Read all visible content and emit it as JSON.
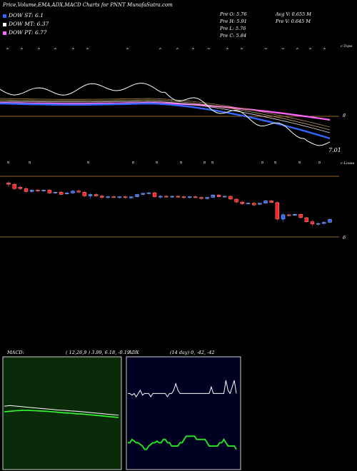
{
  "header": {
    "title": "Price,Volume,EMA,ADX,MACD Charts for PNNT MunafaSutra.com"
  },
  "legend": [
    {
      "label": "DOW ST: 6.1",
      "color": "#3366ff"
    },
    {
      "label": "DOW MT: 6.37",
      "color": "#ffffff"
    },
    {
      "label": "DOW PT: 6.77",
      "color": "#ff66ff"
    }
  ],
  "stats": {
    "prev_open": "Pre   O: 5.76",
    "prev_high": "Pre   H: 5.91",
    "prev_low": "Pre   L: 5.76",
    "prev_close": "Pre   C: 5.84",
    "avg_volume": "Avg V: 0.655 M",
    "prev_volume": "Pre   V: 0.645 M"
  },
  "labels": {
    "price_last": "7.01",
    "upper_right": "c-Tope",
    "mid_right": "c-Loasa",
    "axis_8": "8",
    "axis_6": "6"
  },
  "macd": {
    "title": "MACD:",
    "params": "( 12,26,9 ) 3.99, 6.18, -0.19"
  },
  "adx": {
    "title": "ADX",
    "params": "(14  day) 0, -42, -42"
  },
  "colors": {
    "background": "#000000",
    "up": "#3366ff",
    "down": "#ff2222",
    "ema_short": "#3366ff",
    "ema_long": "#ff66ff",
    "price_line": "#ffffff",
    "hline": "#cc8833",
    "macd_bg": "#0a2a0a",
    "adx_bg": "#000022"
  },
  "chart_data": [
    {
      "type": "candlestick",
      "title": "",
      "ylim": [
        5.4,
        8.6
      ],
      "candles": [
        {
          "o": 8.2,
          "h": 8.25,
          "l": 8.05,
          "c": 8.15
        },
        {
          "o": 8.15,
          "h": 8.2,
          "l": 7.95,
          "c": 8.0
        },
        {
          "o": 8.05,
          "h": 8.1,
          "l": 7.95,
          "c": 8.0
        },
        {
          "o": 8.0,
          "h": 8.05,
          "l": 7.85,
          "c": 7.9
        },
        {
          "o": 7.9,
          "h": 7.98,
          "l": 7.85,
          "c": 7.95
        },
        {
          "o": 7.95,
          "h": 8.0,
          "l": 7.88,
          "c": 7.92
        },
        {
          "o": 7.92,
          "h": 7.98,
          "l": 7.88,
          "c": 7.95
        },
        {
          "o": 7.95,
          "h": 7.98,
          "l": 7.82,
          "c": 7.85
        },
        {
          "o": 7.85,
          "h": 7.9,
          "l": 7.8,
          "c": 7.88
        },
        {
          "o": 7.88,
          "h": 7.92,
          "l": 7.78,
          "c": 7.8
        },
        {
          "o": 7.82,
          "h": 7.9,
          "l": 7.8,
          "c": 7.85
        },
        {
          "o": 7.85,
          "h": 7.95,
          "l": 7.82,
          "c": 7.92
        },
        {
          "o": 7.92,
          "h": 7.98,
          "l": 7.85,
          "c": 7.88
        },
        {
          "o": 7.88,
          "h": 7.92,
          "l": 7.7,
          "c": 7.75
        },
        {
          "o": 7.75,
          "h": 7.85,
          "l": 7.65,
          "c": 7.8
        },
        {
          "o": 7.8,
          "h": 7.85,
          "l": 7.72,
          "c": 7.75
        },
        {
          "o": 7.75,
          "h": 7.8,
          "l": 7.65,
          "c": 7.7
        },
        {
          "o": 7.7,
          "h": 7.76,
          "l": 7.66,
          "c": 7.72
        },
        {
          "o": 7.72,
          "h": 7.76,
          "l": 7.68,
          "c": 7.7
        },
        {
          "o": 7.7,
          "h": 7.74,
          "l": 7.66,
          "c": 7.72
        },
        {
          "o": 7.72,
          "h": 7.76,
          "l": 7.66,
          "c": 7.7
        },
        {
          "o": 7.68,
          "h": 7.74,
          "l": 7.64,
          "c": 7.72
        },
        {
          "o": 7.72,
          "h": 7.82,
          "l": 7.7,
          "c": 7.8
        },
        {
          "o": 7.8,
          "h": 7.86,
          "l": 7.76,
          "c": 7.84
        },
        {
          "o": 7.84,
          "h": 7.88,
          "l": 7.8,
          "c": 7.86
        },
        {
          "o": 7.86,
          "h": 7.9,
          "l": 7.7,
          "c": 7.72
        },
        {
          "o": 7.72,
          "h": 7.78,
          "l": 7.66,
          "c": 7.74
        },
        {
          "o": 7.74,
          "h": 7.78,
          "l": 7.7,
          "c": 7.72
        },
        {
          "o": 7.72,
          "h": 7.76,
          "l": 7.68,
          "c": 7.74
        },
        {
          "o": 7.74,
          "h": 7.78,
          "l": 7.68,
          "c": 7.72
        },
        {
          "o": 7.72,
          "h": 7.76,
          "l": 7.66,
          "c": 7.7
        },
        {
          "o": 7.7,
          "h": 7.74,
          "l": 7.66,
          "c": 7.72
        },
        {
          "o": 7.72,
          "h": 7.76,
          "l": 7.66,
          "c": 7.7
        },
        {
          "o": 7.7,
          "h": 7.74,
          "l": 7.62,
          "c": 7.66
        },
        {
          "o": 7.66,
          "h": 7.72,
          "l": 7.62,
          "c": 7.7
        },
        {
          "o": 7.7,
          "h": 7.8,
          "l": 7.68,
          "c": 7.78
        },
        {
          "o": 7.78,
          "h": 7.82,
          "l": 7.7,
          "c": 7.72
        },
        {
          "o": 7.72,
          "h": 7.76,
          "l": 7.7,
          "c": 7.74
        },
        {
          "o": 7.74,
          "h": 7.76,
          "l": 7.62,
          "c": 7.64
        },
        {
          "o": 7.64,
          "h": 7.68,
          "l": 7.5,
          "c": 7.54
        },
        {
          "o": 7.54,
          "h": 7.58,
          "l": 7.44,
          "c": 7.48
        },
        {
          "o": 7.48,
          "h": 7.52,
          "l": 7.46,
          "c": 7.5
        },
        {
          "o": 7.5,
          "h": 7.54,
          "l": 7.4,
          "c": 7.44
        },
        {
          "o": 7.46,
          "h": 7.52,
          "l": 7.44,
          "c": 7.5
        },
        {
          "o": 7.5,
          "h": 7.6,
          "l": 7.48,
          "c": 7.58
        },
        {
          "o": 7.58,
          "h": 7.62,
          "l": 7.5,
          "c": 7.52
        },
        {
          "o": 7.52,
          "h": 7.56,
          "l": 6.9,
          "c": 6.95
        },
        {
          "o": 6.95,
          "h": 7.15,
          "l": 6.85,
          "c": 7.1
        },
        {
          "o": 7.1,
          "h": 7.14,
          "l": 7.04,
          "c": 7.08
        },
        {
          "o": 7.08,
          "h": 7.14,
          "l": 7.06,
          "c": 7.12
        },
        {
          "o": 7.12,
          "h": 7.14,
          "l": 6.98,
          "c": 7.0
        },
        {
          "o": 7.0,
          "h": 7.02,
          "l": 6.82,
          "c": 6.86
        },
        {
          "o": 6.86,
          "h": 6.92,
          "l": 6.72,
          "c": 6.78
        },
        {
          "o": 6.78,
          "h": 6.84,
          "l": 6.72,
          "c": 6.8
        },
        {
          "o": 6.8,
          "h": 6.88,
          "l": 6.76,
          "c": 6.84
        },
        {
          "o": 6.84,
          "h": 6.96,
          "l": 6.82,
          "c": 6.94
        }
      ]
    },
    {
      "type": "line",
      "title": "MACD",
      "series": [
        {
          "values": [
            0.2,
            0.22,
            0.2,
            0.18,
            0.16,
            0.14,
            0.12,
            0.1,
            0.08,
            0.06,
            0.05,
            0.03,
            0.02,
            0.0,
            -0.02,
            -0.04,
            -0.06,
            -0.08,
            -0.1,
            -0.12
          ]
        },
        {
          "values": [
            0.1,
            0.12,
            0.14,
            0.15,
            0.15,
            0.14,
            0.13,
            0.12,
            0.1,
            0.08,
            0.06,
            0.05,
            0.03,
            0.02,
            0.0,
            -0.02,
            -0.04,
            -0.06,
            -0.08,
            -0.1
          ]
        }
      ],
      "ylim": [
        -2,
        2
      ]
    },
    {
      "type": "line",
      "title": "ADX",
      "series": [
        {
          "values": [
            42,
            42,
            41,
            42,
            40,
            42,
            44,
            41,
            42,
            42,
            42,
            40,
            42,
            42,
            42,
            42,
            42,
            42,
            42,
            40,
            42,
            42,
            44,
            48,
            44,
            42,
            42,
            42,
            42,
            42,
            42,
            42,
            42,
            42,
            42,
            42,
            42,
            42,
            42,
            42,
            46,
            42,
            42,
            42,
            42,
            42,
            42,
            50,
            44,
            42,
            46,
            50,
            42
          ]
        },
        {
          "values": [
            12,
            12,
            14,
            13,
            12,
            12,
            11,
            10,
            8,
            8,
            10,
            11,
            12,
            12,
            13,
            12,
            12,
            14,
            14,
            12,
            12,
            10,
            10,
            10,
            10,
            12,
            12,
            14,
            16,
            16,
            16,
            16,
            16,
            14,
            14,
            14,
            14,
            14,
            12,
            10,
            10,
            10,
            10,
            10,
            12,
            12,
            14,
            12,
            10,
            10,
            10,
            10,
            8
          ]
        }
      ],
      "ylim": [
        0,
        60
      ]
    }
  ]
}
